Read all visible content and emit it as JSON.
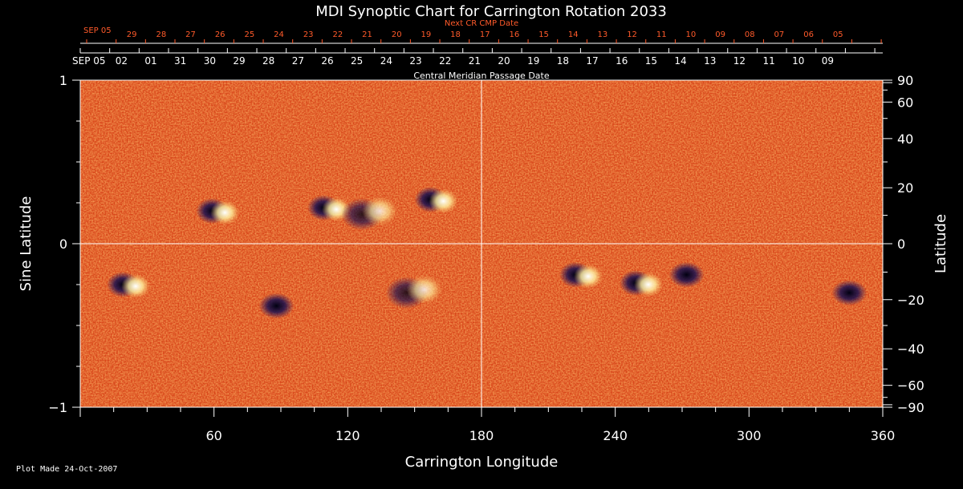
{
  "chart_data": {
    "type": "heatmap",
    "title": "MDI Synoptic Chart for Carrington Rotation 2033",
    "xlabel": "Carrington Longitude",
    "ylabel_left": "Sine Latitude",
    "ylabel_right": "Latitude",
    "xlim": [
      0,
      360
    ],
    "ylim": [
      -1,
      1
    ],
    "x_ticks": [
      60,
      120,
      180,
      240,
      300,
      360
    ],
    "y_ticks_left": [
      1,
      0,
      -1
    ],
    "y_ticks_left_labels": [
      "1",
      "0",
      "−1"
    ],
    "y_ticks_right": [
      90,
      60,
      40,
      20,
      0,
      -20,
      -40,
      -60,
      -90
    ],
    "y_ticks_right_labels": [
      "90",
      "60",
      "40",
      "20",
      "0",
      "−20",
      "−40",
      "−60",
      "−90"
    ],
    "cmp_axis_label": "Central Meridian Passage Date",
    "cmp_start_label": "SEP 05",
    "cmp_dates": [
      "02",
      "01",
      "31",
      "30",
      "29",
      "28",
      "27",
      "26",
      "25",
      "24",
      "23",
      "22",
      "21",
      "20",
      "19",
      "18",
      "17",
      "16",
      "15",
      "14",
      "13",
      "12",
      "11",
      "10",
      "09"
    ],
    "next_cmp_axis_label": "Next CR CMP Date",
    "next_cmp_start_label": "SEP 05",
    "next_cmp_dates": [
      "29",
      "28",
      "27",
      "26",
      "25",
      "24",
      "23",
      "22",
      "21",
      "20",
      "19",
      "18",
      "17",
      "16",
      "15",
      "14",
      "13",
      "12",
      "11",
      "10",
      "09",
      "08",
      "07",
      "06",
      "05"
    ],
    "grid_lines": [
      "longitude 180",
      "sine latitude 0"
    ],
    "active_regions": [
      {
        "lon": 62,
        "sinlat": 0.2,
        "polarity": "bipolar"
      },
      {
        "lon": 112,
        "sinlat": 0.22,
        "polarity": "bipolar"
      },
      {
        "lon": 130,
        "sinlat": 0.18,
        "polarity": "mixed"
      },
      {
        "lon": 160,
        "sinlat": 0.27,
        "polarity": "bipolar"
      },
      {
        "lon": 22,
        "sinlat": -0.25,
        "polarity": "bipolar"
      },
      {
        "lon": 88,
        "sinlat": -0.38,
        "polarity": "negative"
      },
      {
        "lon": 150,
        "sinlat": -0.3,
        "polarity": "mixed"
      },
      {
        "lon": 225,
        "sinlat": -0.19,
        "polarity": "bipolar"
      },
      {
        "lon": 252,
        "sinlat": -0.24,
        "polarity": "bipolar"
      },
      {
        "lon": 272,
        "sinlat": -0.19,
        "polarity": "negative"
      },
      {
        "lon": 345,
        "sinlat": -0.3,
        "polarity": "negative"
      }
    ],
    "colors": {
      "background": "#000000",
      "text": "#ffffff",
      "next_cmp_text": "#ff5a2a",
      "field_base": "#e8521e",
      "positive": "#ffffff",
      "negative": "#1a1050"
    }
  },
  "footer": {
    "plot_made": "Plot Made 24-Oct-2007"
  }
}
